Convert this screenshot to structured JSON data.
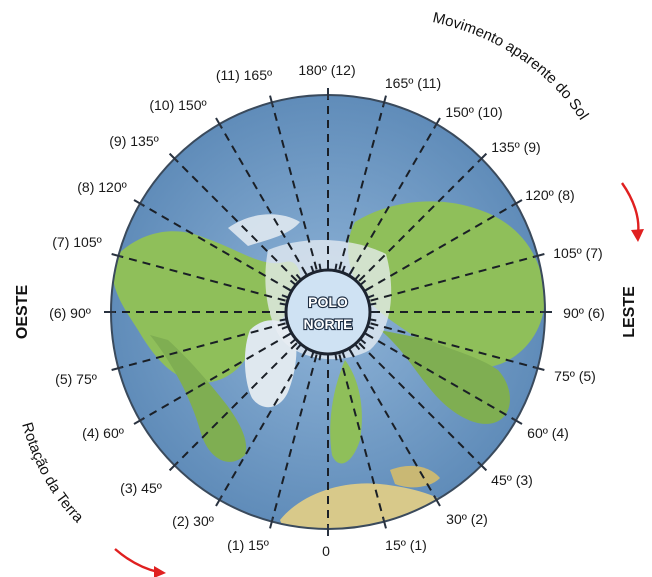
{
  "diagram": {
    "pole_label": [
      "POLO",
      "NORTE"
    ],
    "west_label": "OESTE",
    "east_label": "LESTE",
    "sun_motion_text": "Movimento aparente do Sol",
    "earth_rotation_text": "Rotação da Terra",
    "left_labels": [
      "(11) 165º",
      "(10) 150º",
      "(9) 135º",
      "(8) 120º",
      "(7) 105º",
      "(6) 90º",
      "(5) 75º",
      "(4) 60º",
      "(3) 45º",
      "(2) 30º",
      "(1) 15º"
    ],
    "right_labels": [
      "165º (11)",
      "150º (10)",
      "135º (9)",
      "120º (8)",
      "105º (7)",
      "90º (6)",
      "75º (5)",
      "60º (4)",
      "45º (3)",
      "30º (2)",
      "15º (1)"
    ],
    "top_label": "180º (12)",
    "bottom_label": "0",
    "colors": {
      "ocean": "#6f9ac4",
      "land": "#8fbf5a",
      "arrow": "#e02020",
      "pole_fill": "#cfe2f3"
    }
  }
}
